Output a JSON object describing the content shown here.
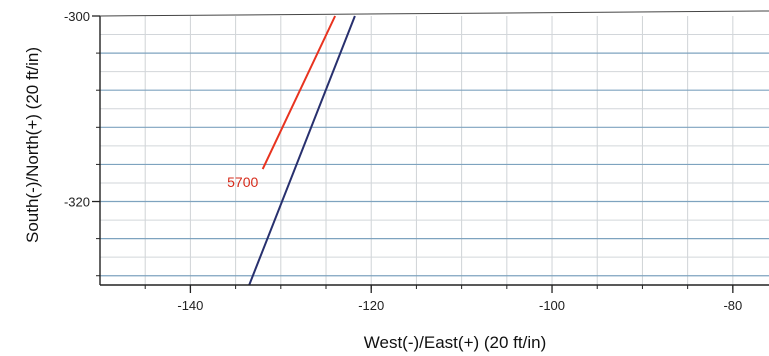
{
  "chart_data": {
    "type": "line",
    "title": "",
    "xlabel": "West(-)/East(+) (20 ft/in)",
    "ylabel": "South(-)/North(+) (20 ft/in)",
    "xlim": [
      -150,
      -76
    ],
    "ylim": [
      -329,
      -300
    ],
    "x_ticks": [
      -140,
      -120,
      -100,
      -80
    ],
    "y_ticks": [
      -300,
      -320
    ],
    "grid": true,
    "series": [
      {
        "color": "#e8331f",
        "points": [
          [
            -132,
            -316.5
          ],
          [
            -124,
            -300
          ]
        ]
      },
      {
        "color": "#28306e",
        "points": [
          [
            -133.5,
            -329
          ],
          [
            -121.8,
            -300
          ]
        ]
      }
    ],
    "annotations": [
      {
        "text": "5700",
        "x": -132,
        "y": -316.5,
        "color": "#d62b1b"
      }
    ]
  }
}
